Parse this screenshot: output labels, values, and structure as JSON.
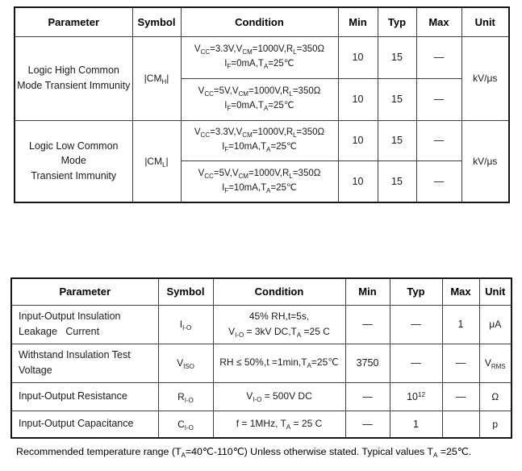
{
  "table1": {
    "headers": [
      "Parameter",
      "Symbol",
      "Condition",
      "Min",
      "Typ",
      "Max",
      "Unit"
    ],
    "groups": [
      {
        "parameter": "Logic High Common\nMode Transient Immunity",
        "symbol": "|CM~H~|",
        "unit": "kV/μs",
        "rows": [
          {
            "condition": "V~CC~=3.3V,V~CM~=1000V,R~L~=350Ω\nI~F~=0mA,T~A~=25℃",
            "min": "10",
            "typ": "15",
            "max": "—"
          },
          {
            "condition": "V~CC~=5V,V~CM~=1000V,R~L~=350Ω\nI~F~=0mA,T~A~=25℃",
            "min": "10",
            "typ": "15",
            "max": "—"
          }
        ]
      },
      {
        "parameter": "Logic Low Common Mode\nTransient Immunity",
        "symbol": "|CM~L~|",
        "unit": "kV/μs",
        "rows": [
          {
            "condition": "V~CC~=3.3V,V~CM~=1000V,R~L~=350Ω\nI~F~=10mA,T~A~=25℃",
            "min": "10",
            "typ": "15",
            "max": "—"
          },
          {
            "condition": "V~CC~=5V,V~CM~=1000V,R~L~=350Ω\nI~F~=10mA,T~A~=25℃",
            "min": "10",
            "typ": "15",
            "max": "—"
          }
        ]
      }
    ]
  },
  "table2": {
    "headers": [
      "Parameter",
      "Symbol",
      "Condition",
      "Min",
      "Typ",
      "Max",
      "Unit"
    ],
    "rows": [
      {
        "parameter": "Input-Output Insulation\nLeakage   Current",
        "symbol": "I~I-O~",
        "condition": "45% RH,t=5s,\nV~I-O~ = 3kV DC,T~A~ =25 C",
        "min": "—",
        "typ": "—",
        "max": "1",
        "unit": "μA"
      },
      {
        "parameter": "Withstand Insulation Test\nVoltage",
        "symbol": "V~ISO~",
        "condition": "RH ≤ 50%,t =1min,T~A~=25℃",
        "min": "3750",
        "typ": "—",
        "max": "—",
        "unit": "V~RMS~"
      },
      {
        "parameter": "Input-Output Resistance",
        "symbol": "R~I-O~",
        "condition": "V~I-O~ = 500V DC",
        "min": "—",
        "typ": "10^12^",
        "max": "—",
        "unit": "Ω"
      },
      {
        "parameter": "Input-Output Capacitance",
        "symbol": "C~I-O~",
        "condition": "f = 1MHz, T~A~ = 25 C",
        "min": "—",
        "typ": "1",
        "max": "",
        "unit": "p"
      }
    ]
  },
  "footnote": "Recommended temperature range (T~A~=40℃-110℃) Unless otherwise stated. Typical values T~A~ =25℃."
}
